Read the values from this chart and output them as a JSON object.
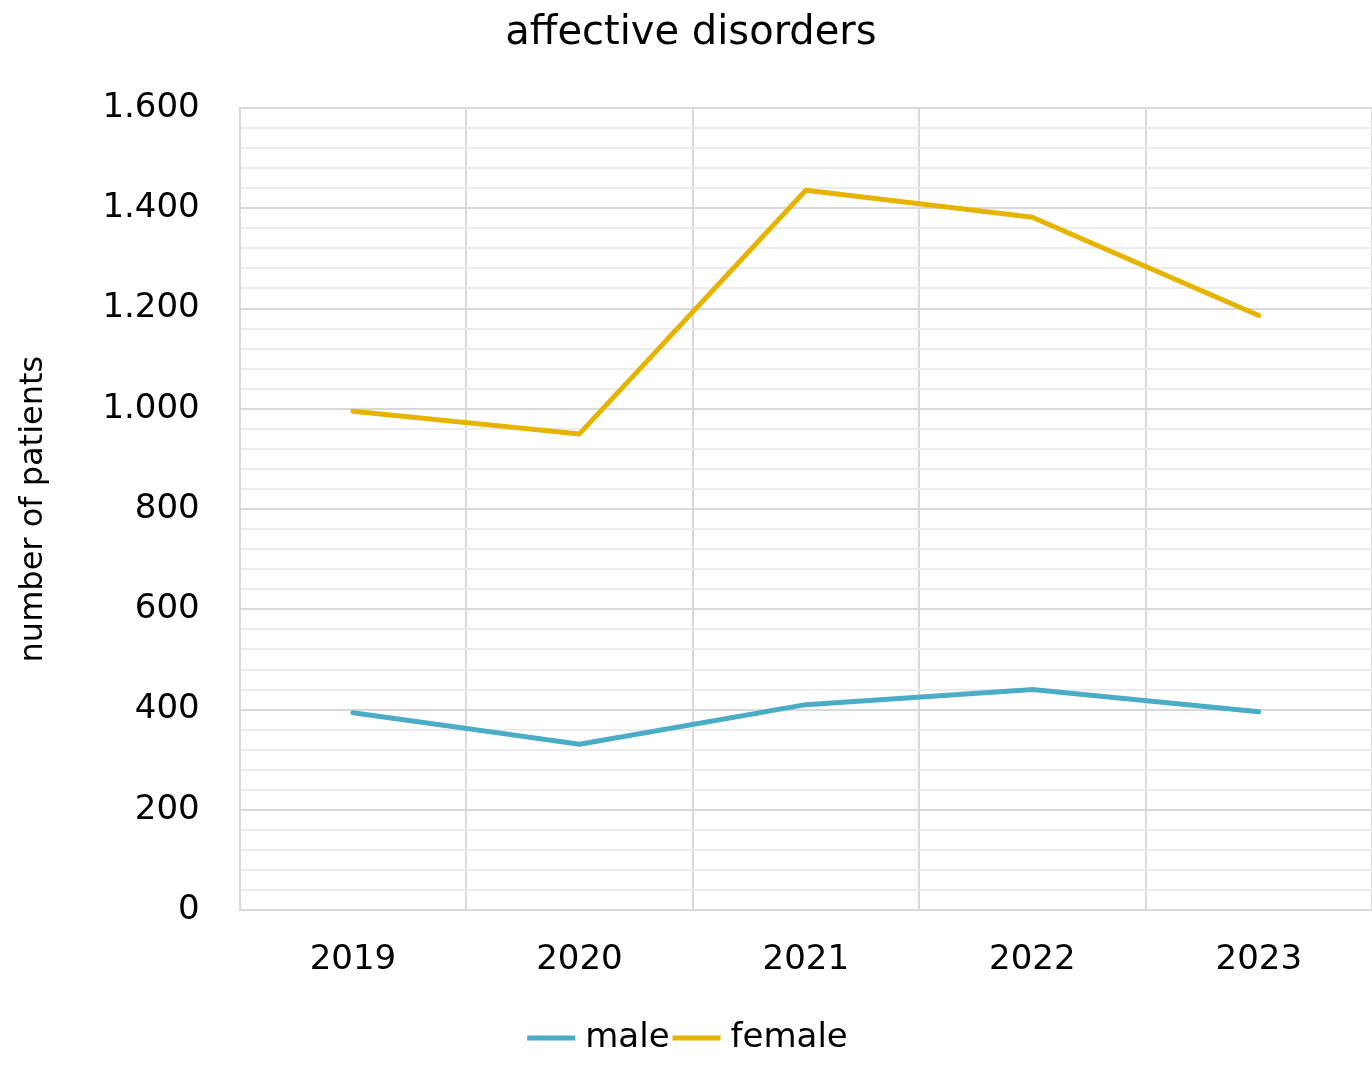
{
  "chart_data": {
    "type": "line",
    "title": "affective disorders",
    "ylabel": "number of patients",
    "categories": [
      "2019",
      "2020",
      "2021",
      "2022",
      "2023"
    ],
    "series": [
      {
        "name": "male",
        "color": "#4bacc6",
        "values": [
          394,
          331,
          410,
          440,
          396
        ]
      },
      {
        "name": "female",
        "color": "#e6b400",
        "values": [
          995,
          950,
          1436,
          1382,
          1186
        ]
      }
    ],
    "ylim": [
      0,
      1600
    ],
    "yticks": [
      {
        "value": 0,
        "label": "0"
      },
      {
        "value": 40,
        "label": null
      },
      {
        "value": 80,
        "label": null
      },
      {
        "value": 120,
        "label": null
      },
      {
        "value": 160,
        "label": null
      },
      {
        "value": 200,
        "label": "200"
      },
      {
        "value": 240,
        "label": null
      },
      {
        "value": 280,
        "label": null
      },
      {
        "value": 320,
        "label": null
      },
      {
        "value": 360,
        "label": null
      },
      {
        "value": 400,
        "label": "400"
      },
      {
        "value": 440,
        "label": null
      },
      {
        "value": 480,
        "label": null
      },
      {
        "value": 520,
        "label": null
      },
      {
        "value": 560,
        "label": null
      },
      {
        "value": 600,
        "label": "600"
      },
      {
        "value": 640,
        "label": null
      },
      {
        "value": 680,
        "label": null
      },
      {
        "value": 720,
        "label": null
      },
      {
        "value": 760,
        "label": null
      },
      {
        "value": 800,
        "label": "800"
      },
      {
        "value": 840,
        "label": null
      },
      {
        "value": 880,
        "label": null
      },
      {
        "value": 920,
        "label": null
      },
      {
        "value": 960,
        "label": null
      },
      {
        "value": 1000,
        "label": "1.000"
      },
      {
        "value": 1040,
        "label": null
      },
      {
        "value": 1080,
        "label": null
      },
      {
        "value": 1120,
        "label": null
      },
      {
        "value": 1160,
        "label": null
      },
      {
        "value": 1200,
        "label": "1.200"
      },
      {
        "value": 1240,
        "label": null
      },
      {
        "value": 1280,
        "label": null
      },
      {
        "value": 1320,
        "label": null
      },
      {
        "value": 1360,
        "label": null
      },
      {
        "value": 1400,
        "label": "1.400"
      },
      {
        "value": 1440,
        "label": null
      },
      {
        "value": 1480,
        "label": null
      },
      {
        "value": 1520,
        "label": null
      },
      {
        "value": 1560,
        "label": null
      },
      {
        "value": 1600,
        "label": "1.600"
      }
    ],
    "grid": true,
    "legend": "bottom",
    "marker": "none",
    "line_style": "solid"
  }
}
